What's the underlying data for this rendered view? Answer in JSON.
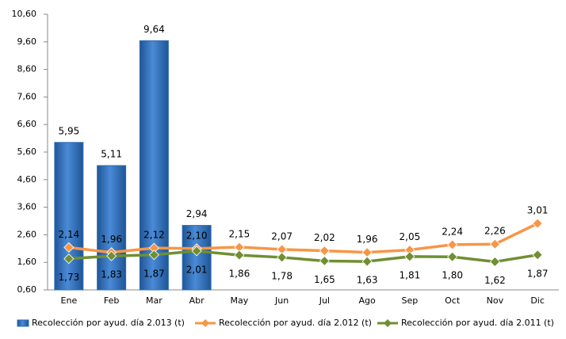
{
  "chart_data": {
    "type": "bar",
    "categories": [
      "Ene",
      "Feb",
      "Mar",
      "Abr",
      "May",
      "Jun",
      "Jul",
      "Ago",
      "Sep",
      "Oct",
      "Nov",
      "Dic"
    ],
    "series": [
      {
        "name": "Recolección por ayud. día 2.013 (t)",
        "type": "bar",
        "color": "#2f6cb5",
        "values": [
          5.95,
          5.11,
          9.64,
          2.94,
          null,
          null,
          null,
          null,
          null,
          null,
          null,
          null
        ],
        "value_labels": [
          "5,95",
          "5,11",
          "9,64",
          "2,94",
          null,
          null,
          null,
          null,
          null,
          null,
          null,
          null
        ]
      },
      {
        "name": "Recolección por ayud. día 2.012 (t)",
        "type": "line",
        "color": "#f79646",
        "values": [
          2.14,
          1.96,
          2.12,
          2.1,
          2.15,
          2.07,
          2.02,
          1.96,
          2.05,
          2.24,
          2.26,
          3.01
        ],
        "value_labels": [
          "2,14",
          "1,96",
          "2,12",
          "2,10",
          "2,15",
          "2,07",
          "2,02",
          "1,96",
          "2,05",
          "2,24",
          "2,26",
          "3,01"
        ]
      },
      {
        "name": "Recolección por ayud. día 2.011 (t)",
        "type": "line",
        "color": "#6f8f32",
        "values": [
          1.73,
          1.83,
          1.87,
          2.01,
          1.86,
          1.78,
          1.65,
          1.63,
          1.81,
          1.8,
          1.62,
          1.87
        ],
        "value_labels": [
          "1,73",
          "1,83",
          "1,87",
          "2,01",
          "1,86",
          "1,78",
          "1,65",
          "1,63",
          "1,81",
          "1,80",
          "1,62",
          "1,87"
        ]
      }
    ],
    "ylim": [
      0.6,
      10.6
    ],
    "yticks": [
      {
        "value": 0.6,
        "label": "0,60"
      },
      {
        "value": 1.6,
        "label": "1,60"
      },
      {
        "value": 2.6,
        "label": "2,60"
      },
      {
        "value": 3.6,
        "label": "3,60"
      },
      {
        "value": 4.6,
        "label": "4,60"
      },
      {
        "value": 5.6,
        "label": "5,60"
      },
      {
        "value": 6.6,
        "label": "6,60"
      },
      {
        "value": 7.6,
        "label": "7,60"
      },
      {
        "value": 8.6,
        "label": "8,60"
      },
      {
        "value": 9.6,
        "label": "9,60"
      },
      {
        "value": 10.6,
        "label": "10,60"
      }
    ],
    "legend": "bottom"
  }
}
